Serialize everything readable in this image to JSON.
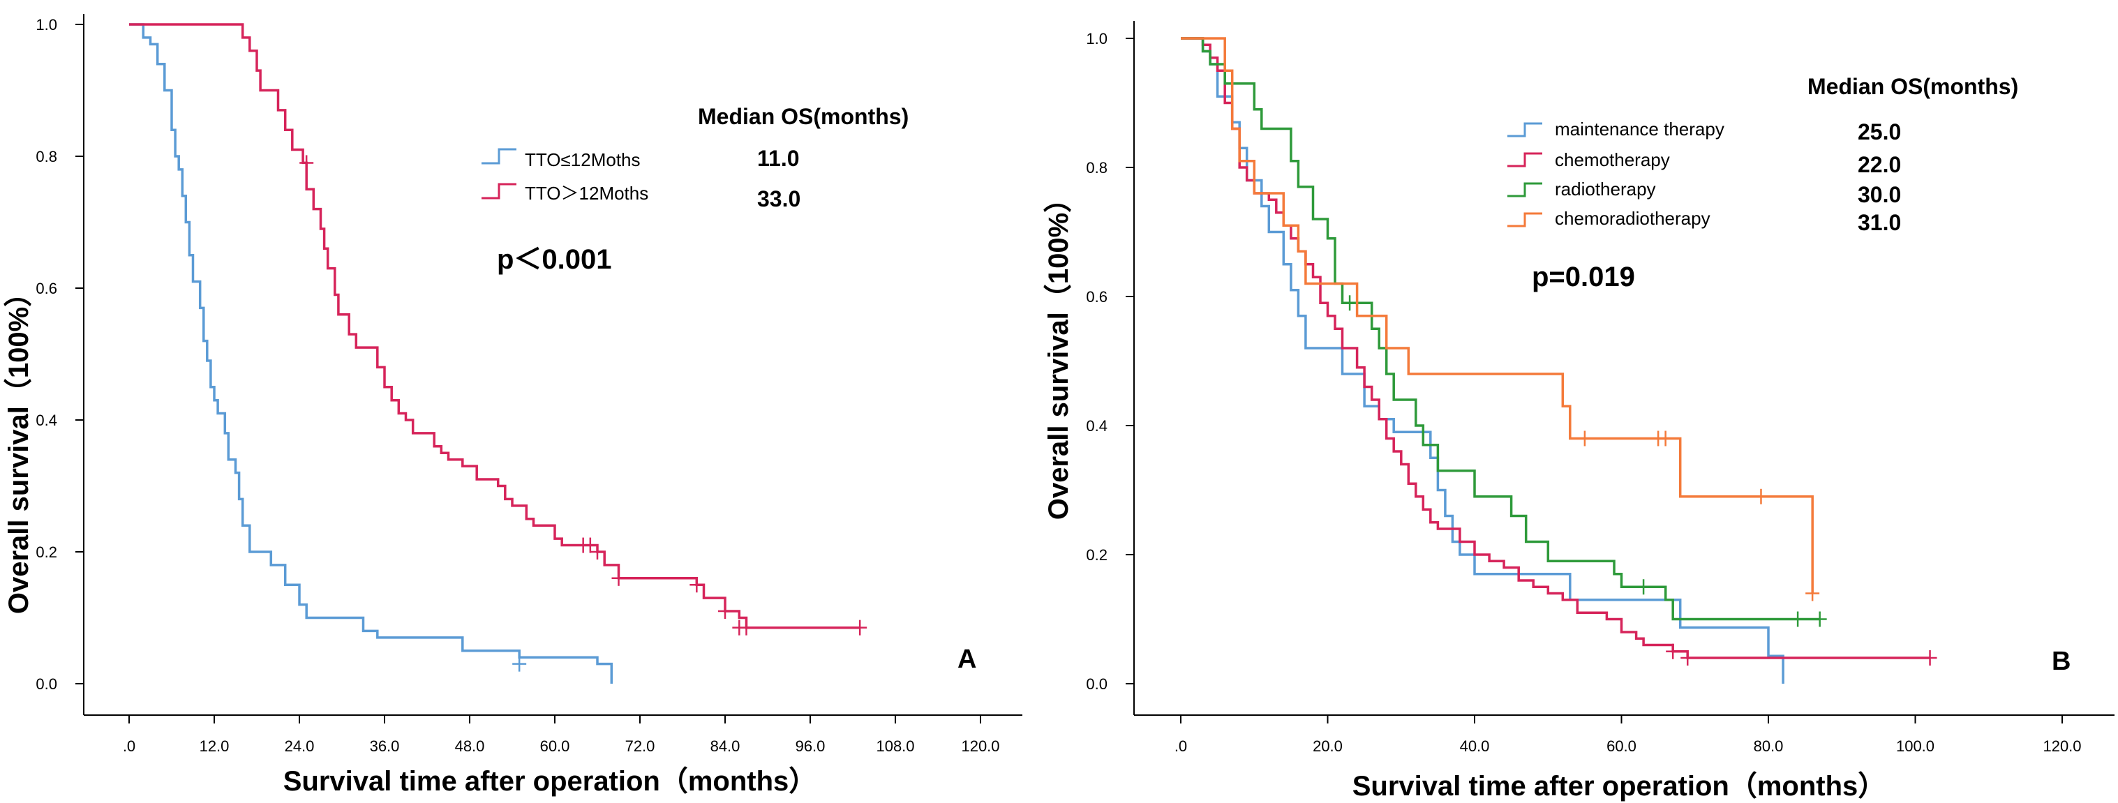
{
  "chart_data": [
    {
      "type": "line",
      "subtype": "kaplan-meier",
      "panel_label": "A",
      "xlabel": "Survival time after operation（months）",
      "ylabel": "Overall survival（100%）",
      "xlim": [
        0,
        120
      ],
      "ylim": [
        0,
        1.0
      ],
      "x_ticks": [
        0,
        12,
        24,
        36,
        48,
        60,
        72,
        84,
        96,
        108,
        120
      ],
      "x_tick_labels": [
        ".0",
        "12.0",
        "24.0",
        "36.0",
        "48.0",
        "60.0",
        "72.0",
        "84.0",
        "96.0",
        "108.0",
        "120.0"
      ],
      "y_ticks": [
        0,
        0.2,
        0.4,
        0.6,
        0.8,
        1.0
      ],
      "y_tick_labels": [
        "0.0",
        "0.2",
        "0.4",
        "0.6",
        "0.8",
        "1.0"
      ],
      "median_title": "Median OS(months)",
      "p_value": "p＜0.001",
      "series": [
        {
          "name": "TTO≤12Moths",
          "median": "11.0",
          "color": "#5b9bd5",
          "points": [
            [
              0,
              1.0
            ],
            [
              1.5,
              1.0
            ],
            [
              2,
              0.98
            ],
            [
              3,
              0.97
            ],
            [
              4,
              0.94
            ],
            [
              5,
              0.9
            ],
            [
              6,
              0.84
            ],
            [
              6.5,
              0.8
            ],
            [
              7,
              0.78
            ],
            [
              7.5,
              0.74
            ],
            [
              8,
              0.7
            ],
            [
              8.5,
              0.65
            ],
            [
              9,
              0.61
            ],
            [
              10,
              0.57
            ],
            [
              10.5,
              0.52
            ],
            [
              11,
              0.49
            ],
            [
              11.5,
              0.45
            ],
            [
              12,
              0.43
            ],
            [
              12.5,
              0.41
            ],
            [
              13.5,
              0.38
            ],
            [
              14,
              0.34
            ],
            [
              15,
              0.32
            ],
            [
              15.5,
              0.28
            ],
            [
              16,
              0.24
            ],
            [
              17,
              0.2
            ],
            [
              20,
              0.18
            ],
            [
              22,
              0.15
            ],
            [
              24,
              0.12
            ],
            [
              25,
              0.1
            ],
            [
              33,
              0.08
            ],
            [
              35,
              0.07
            ],
            [
              47,
              0.05
            ],
            [
              55,
              0.04
            ],
            [
              66,
              0.03
            ],
            [
              68,
              0.0
            ]
          ],
          "censored": [
            [
              55,
              0.03
            ]
          ]
        },
        {
          "name": "TTO＞12Moths",
          "median": "33.0",
          "color": "#d6245a",
          "points": [
            [
              0,
              1.0
            ],
            [
              15,
              1.0
            ],
            [
              16,
              0.98
            ],
            [
              17,
              0.96
            ],
            [
              18,
              0.93
            ],
            [
              18.5,
              0.9
            ],
            [
              21,
              0.87
            ],
            [
              22,
              0.84
            ],
            [
              23,
              0.81
            ],
            [
              24.5,
              0.79
            ],
            [
              25,
              0.75
            ],
            [
              26,
              0.72
            ],
            [
              27,
              0.69
            ],
            [
              27.5,
              0.66
            ],
            [
              28,
              0.63
            ],
            [
              29,
              0.59
            ],
            [
              29.5,
              0.56
            ],
            [
              31,
              0.53
            ],
            [
              32,
              0.51
            ],
            [
              35,
              0.48
            ],
            [
              36,
              0.45
            ],
            [
              37,
              0.43
            ],
            [
              38,
              0.41
            ],
            [
              39,
              0.4
            ],
            [
              40,
              0.38
            ],
            [
              43,
              0.36
            ],
            [
              44,
              0.35
            ],
            [
              45,
              0.34
            ],
            [
              47,
              0.33
            ],
            [
              49,
              0.31
            ],
            [
              52,
              0.3
            ],
            [
              53,
              0.28
            ],
            [
              54,
              0.27
            ],
            [
              56,
              0.25
            ],
            [
              57,
              0.24
            ],
            [
              60,
              0.22
            ],
            [
              61,
              0.21
            ],
            [
              66,
              0.2
            ],
            [
              67,
              0.18
            ],
            [
              69,
              0.16
            ],
            [
              80,
              0.15
            ],
            [
              81,
              0.13
            ],
            [
              84,
              0.11
            ],
            [
              86,
              0.1
            ],
            [
              87,
              0.085
            ],
            [
              103,
              0.085
            ]
          ],
          "censored": [
            [
              25,
              0.79
            ],
            [
              64,
              0.21
            ],
            [
              65,
              0.21
            ],
            [
              66,
              0.2
            ],
            [
              69,
              0.16
            ],
            [
              80,
              0.15
            ],
            [
              84,
              0.11
            ],
            [
              86,
              0.085
            ],
            [
              87,
              0.085
            ],
            [
              103,
              0.085
            ]
          ]
        }
      ]
    },
    {
      "type": "line",
      "subtype": "kaplan-meier",
      "panel_label": "B",
      "xlabel": "Survival time after operation（months）",
      "ylabel": "Overall survival（100%）",
      "xlim": [
        0,
        120
      ],
      "ylim": [
        0,
        1.0
      ],
      "x_ticks": [
        0,
        20,
        40,
        60,
        80,
        100,
        120
      ],
      "x_tick_labels": [
        ".0",
        "20.0",
        "40.0",
        "60.0",
        "80.0",
        "100.0",
        "120.0"
      ],
      "y_ticks": [
        0,
        0.2,
        0.4,
        0.6,
        0.8,
        1.0
      ],
      "y_tick_labels": [
        "0.0",
        "0.2",
        "0.4",
        "0.6",
        "0.8",
        "1.0"
      ],
      "median_title": "Median OS(months)",
      "p_value": "p=0.019",
      "series": [
        {
          "name": "maintenance therapy",
          "median": "25.0",
          "color": "#5b9bd5",
          "points": [
            [
              0,
              1.0
            ],
            [
              3,
              0.98
            ],
            [
              4,
              0.96
            ],
            [
              5,
              0.91
            ],
            [
              7,
              0.87
            ],
            [
              8,
              0.83
            ],
            [
              9,
              0.78
            ],
            [
              11,
              0.74
            ],
            [
              12,
              0.7
            ],
            [
              14,
              0.65
            ],
            [
              15,
              0.61
            ],
            [
              16,
              0.57
            ],
            [
              17,
              0.52
            ],
            [
              22,
              0.48
            ],
            [
              25,
              0.43
            ],
            [
              27,
              0.41
            ],
            [
              29,
              0.39
            ],
            [
              34,
              0.35
            ],
            [
              35,
              0.3
            ],
            [
              36,
              0.26
            ],
            [
              37,
              0.22
            ],
            [
              38,
              0.2
            ],
            [
              40,
              0.17
            ],
            [
              53,
              0.13
            ],
            [
              68,
              0.087
            ],
            [
              80,
              0.043
            ],
            [
              82,
              0.0
            ]
          ],
          "censored": []
        },
        {
          "name": "chemotherapy",
          "median": "22.0",
          "color": "#d6245a",
          "points": [
            [
              0,
              1.0
            ],
            [
              3,
              0.99
            ],
            [
              4,
              0.97
            ],
            [
              5,
              0.95
            ],
            [
              6,
              0.9
            ],
            [
              7,
              0.86
            ],
            [
              8,
              0.8
            ],
            [
              9,
              0.78
            ],
            [
              10,
              0.76
            ],
            [
              12,
              0.75
            ],
            [
              13,
              0.73
            ],
            [
              14,
              0.71
            ],
            [
              15,
              0.69
            ],
            [
              16,
              0.67
            ],
            [
              17,
              0.65
            ],
            [
              18,
              0.63
            ],
            [
              19,
              0.59
            ],
            [
              20,
              0.57
            ],
            [
              21,
              0.55
            ],
            [
              22,
              0.52
            ],
            [
              24,
              0.49
            ],
            [
              25,
              0.46
            ],
            [
              26,
              0.44
            ],
            [
              27,
              0.41
            ],
            [
              28,
              0.38
            ],
            [
              29,
              0.36
            ],
            [
              30,
              0.34
            ],
            [
              31,
              0.31
            ],
            [
              32,
              0.29
            ],
            [
              33,
              0.27
            ],
            [
              34,
              0.25
            ],
            [
              35,
              0.24
            ],
            [
              38,
              0.22
            ],
            [
              40,
              0.2
            ],
            [
              42,
              0.19
            ],
            [
              44,
              0.18
            ],
            [
              46,
              0.16
            ],
            [
              48,
              0.15
            ],
            [
              50,
              0.14
            ],
            [
              52,
              0.13
            ],
            [
              54,
              0.11
            ],
            [
              58,
              0.1
            ],
            [
              60,
              0.08
            ],
            [
              62,
              0.07
            ],
            [
              63,
              0.06
            ],
            [
              67,
              0.05
            ],
            [
              69,
              0.04
            ],
            [
              102,
              0.04
            ]
          ],
          "censored": [
            [
              67,
              0.05
            ],
            [
              69,
              0.04
            ],
            [
              102,
              0.04
            ]
          ]
        },
        {
          "name": "radiotherapy",
          "median": "30.0",
          "color": "#2e9a3a",
          "points": [
            [
              0,
              1.0
            ],
            [
              3,
              0.98
            ],
            [
              4,
              0.96
            ],
            [
              6,
              0.93
            ],
            [
              10,
              0.89
            ],
            [
              11,
              0.86
            ],
            [
              15,
              0.81
            ],
            [
              16,
              0.77
            ],
            [
              18,
              0.72
            ],
            [
              20,
              0.69
            ],
            [
              21,
              0.62
            ],
            [
              22,
              0.59
            ],
            [
              26,
              0.55
            ],
            [
              27,
              0.52
            ],
            [
              28,
              0.48
            ],
            [
              29,
              0.44
            ],
            [
              32,
              0.4
            ],
            [
              33,
              0.37
            ],
            [
              35,
              0.33
            ],
            [
              40,
              0.29
            ],
            [
              45,
              0.26
            ],
            [
              47,
              0.22
            ],
            [
              50,
              0.19
            ],
            [
              59,
              0.17
            ],
            [
              60,
              0.15
            ],
            [
              66,
              0.13
            ],
            [
              67,
              0.1
            ],
            [
              87,
              0.1
            ]
          ],
          "censored": [
            [
              23,
              0.59
            ],
            [
              63,
              0.15
            ],
            [
              84,
              0.1
            ],
            [
              87,
              0.1
            ]
          ]
        },
        {
          "name": "chemoradiotherapy",
          "median": "31.0",
          "color": "#f47a3a",
          "points": [
            [
              0,
              1.0
            ],
            [
              6,
              0.95
            ],
            [
              7,
              0.86
            ],
            [
              8,
              0.81
            ],
            [
              10,
              0.76
            ],
            [
              14,
              0.71
            ],
            [
              16,
              0.67
            ],
            [
              17,
              0.62
            ],
            [
              24,
              0.57
            ],
            [
              28,
              0.52
            ],
            [
              31,
              0.48
            ],
            [
              52,
              0.43
            ],
            [
              53,
              0.38
            ],
            [
              68,
              0.29
            ],
            [
              86,
              0.14
            ]
          ],
          "censored": [
            [
              55,
              0.38
            ],
            [
              65,
              0.38
            ],
            [
              66,
              0.38
            ],
            [
              79,
              0.29
            ],
            [
              86,
              0.14
            ]
          ]
        }
      ]
    }
  ]
}
